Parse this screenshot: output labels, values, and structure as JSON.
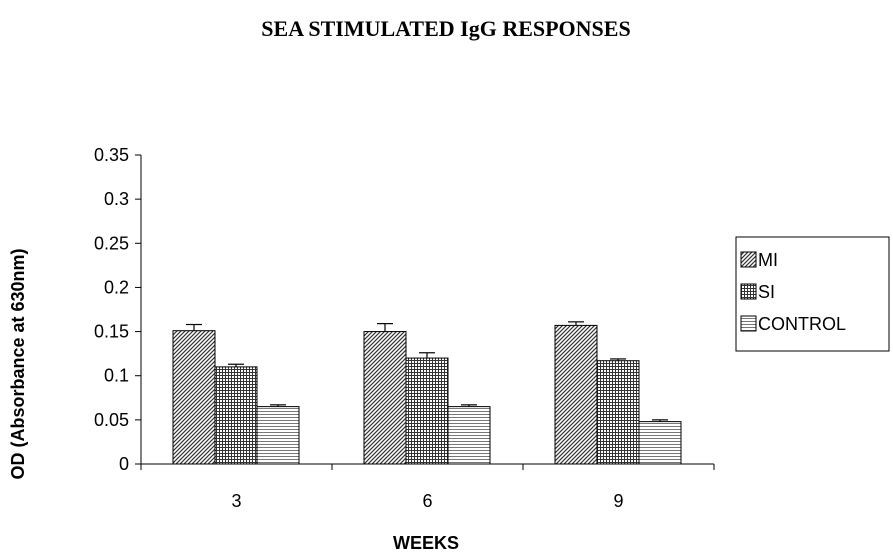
{
  "chart_data": {
    "type": "bar",
    "title": "SEA STIMULATED IgG RESPONSES",
    "xlabel": "WEEKS",
    "ylabel": "OD (Absorbance at 630nm)",
    "categories": [
      "3",
      "6",
      "9"
    ],
    "ylim": [
      0,
      0.35
    ],
    "yticks": [
      "0",
      "0.05",
      "0.1",
      "0.15",
      "0.2",
      "0.25",
      "0.3",
      "0.35"
    ],
    "grid": false,
    "legend_position": "right",
    "series": [
      {
        "name": "MI",
        "values": [
          0.151,
          0.15,
          0.157
        ],
        "errors": [
          0.007,
          0.009,
          0.004
        ],
        "pattern": "diagonal"
      },
      {
        "name": "SI",
        "values": [
          0.11,
          0.12,
          0.117
        ],
        "errors": [
          0.003,
          0.006,
          0.002
        ],
        "pattern": "grid"
      },
      {
        "name": "CONTROL",
        "values": [
          0.065,
          0.065,
          0.048
        ],
        "errors": [
          0.002,
          0.002,
          0.002
        ],
        "pattern": "horizontal"
      }
    ]
  }
}
